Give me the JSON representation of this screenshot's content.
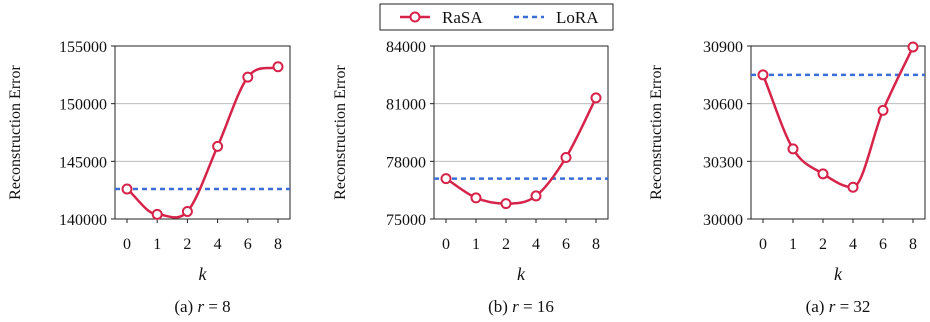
{
  "legend": {
    "placement": "top-center",
    "entries": [
      {
        "name": "RaSA",
        "color": "#d6234a",
        "style": "solid-circle-markers"
      },
      {
        "name": "LoRA",
        "color": "#3b6fd4",
        "style": "dashed"
      }
    ]
  },
  "chart_data": [
    {
      "type": "line",
      "caption": "(a) r = 8",
      "caption_prefix": "(a) ",
      "caption_var": "r",
      "caption_value": " = 8",
      "xlabel": "k",
      "ylabel": "Reconstruction Error",
      "x_ticks": [
        "0",
        "1",
        "2",
        "4",
        "6",
        "8"
      ],
      "y_ticks": [
        "140000",
        "145000",
        "150000",
        "155000"
      ],
      "ylim": [
        140000,
        155000
      ],
      "grid": "horizontal",
      "series": [
        {
          "name": "RaSA",
          "values": [
            142600,
            140400,
            140650,
            146300,
            152300,
            153200
          ]
        },
        {
          "name": "LoRA",
          "constant": 142600
        }
      ]
    },
    {
      "type": "line",
      "caption": "(b) r = 16",
      "caption_prefix": "(b) ",
      "caption_var": "r",
      "caption_value": " = 16",
      "xlabel": "k",
      "ylabel": "Reconstruction Error",
      "x_ticks": [
        "0",
        "1",
        "2",
        "4",
        "6",
        "8"
      ],
      "y_ticks": [
        "75000",
        "78000",
        "81000",
        "84000"
      ],
      "ylim": [
        75000,
        84000
      ],
      "grid": "horizontal",
      "series": [
        {
          "name": "RaSA",
          "values": [
            77100,
            76100,
            75800,
            76200,
            78200,
            81300
          ]
        },
        {
          "name": "LoRA",
          "constant": 77100
        }
      ]
    },
    {
      "type": "line",
      "caption": "(a) r = 32",
      "caption_prefix": "(a) ",
      "caption_var": "r",
      "caption_value": " = 32",
      "xlabel": "k",
      "ylabel": "Reconstruction Error",
      "x_ticks": [
        "0",
        "1",
        "2",
        "4",
        "6",
        "8"
      ],
      "y_ticks": [
        "30000",
        "30300",
        "30600",
        "30900"
      ],
      "ylim": [
        30000,
        30900
      ],
      "grid": "horizontal",
      "series": [
        {
          "name": "RaSA",
          "values": [
            30750,
            30365,
            30235,
            30165,
            30565,
            30895
          ]
        },
        {
          "name": "LoRA",
          "constant": 30750
        }
      ]
    }
  ]
}
